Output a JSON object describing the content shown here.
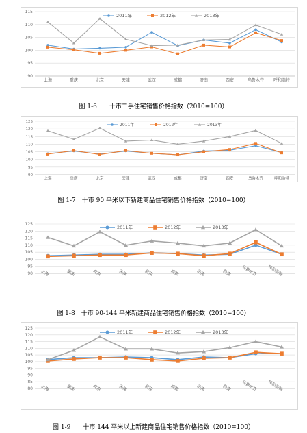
{
  "colors": {
    "s2011": "#5b9bd5",
    "s2012": "#ed7d31",
    "s2013": "#a5a5a5",
    "grid": "#d9d9d9",
    "axis": "#bfbfbf"
  },
  "captions": [
    "图 1-6　　十市二手住宅销售价格指数（2010=100）",
    "图 1-7　十市 90 平米以下新建商品住宅销售价格指数（2010=100）",
    "图 1-8　十市 90-144 平米新建商品住宅销售价格指数（2010=100）",
    "图 1-9　　十市 144 平米以上新建商品住宅销售价格指数（2010=100）"
  ],
  "chart_data": [
    {
      "type": "line",
      "title": "",
      "categories": [
        "上海",
        "重庆",
        "北京",
        "天津",
        "武汉",
        "成都",
        "济南",
        "西安",
        "乌鲁木齐",
        "呼和浩特"
      ],
      "ylim": [
        90,
        115
      ],
      "yticks": [
        90,
        95,
        100,
        105,
        110,
        115
      ],
      "grid": true,
      "legend": "top",
      "series": [
        {
          "name": "2011年",
          "values": [
            102.0,
            100.5,
            100.8,
            101.2,
            107.0,
            101.8,
            104.0,
            102.8,
            108.0,
            103.2
          ]
        },
        {
          "name": "2012年",
          "values": [
            101.2,
            100.2,
            98.8,
            100.0,
            101.3,
            98.6,
            102.0,
            101.3,
            106.8,
            103.8
          ]
        },
        {
          "name": "2013年",
          "values": [
            111.0,
            102.8,
            112.3,
            104.3,
            101.8,
            102.0,
            104.0,
            104.2,
            109.8,
            106.2
          ]
        }
      ]
    },
    {
      "type": "line",
      "title": "",
      "categories": [
        "上海",
        "重庆",
        "北京",
        "天津",
        "武汉",
        "成都",
        "济南",
        "西安",
        "乌鲁木齐",
        "呼和浩特"
      ],
      "ylim": [
        90,
        125
      ],
      "yticks": [
        90,
        95,
        100,
        105,
        110,
        115,
        120,
        125
      ],
      "grid": true,
      "legend": "top",
      "series": [
        {
          "name": "2011年",
          "values": [
            103.8,
            105.5,
            103.5,
            105.5,
            104.0,
            103.0,
            105.5,
            106.0,
            109.0,
            104.5
          ]
        },
        {
          "name": "2012年",
          "values": [
            103.5,
            105.8,
            103.2,
            105.8,
            104.0,
            103.0,
            105.0,
            106.5,
            110.5,
            104.3
          ]
        },
        {
          "name": "2013年",
          "values": [
            118.8,
            113.2,
            120.5,
            112.0,
            112.7,
            110.0,
            112.0,
            115.0,
            119.0,
            110.5
          ]
        }
      ]
    },
    {
      "type": "line",
      "title": "",
      "categories": [
        "上海",
        "重庆",
        "北京",
        "天津",
        "武汉",
        "成都",
        "济南",
        "西安",
        "乌鲁木齐",
        "呼和浩特"
      ],
      "ylim": [
        90,
        125
      ],
      "yticks": [
        90,
        95,
        100,
        105,
        110,
        115,
        120,
        125
      ],
      "grid": true,
      "legend": "top",
      "series": [
        {
          "name": "2011年",
          "values": [
            102.5,
            103.0,
            103.5,
            103.5,
            104.5,
            104.0,
            103.0,
            103.5,
            110.0,
            103.5
          ]
        },
        {
          "name": "2012年",
          "values": [
            102.0,
            102.5,
            103.0,
            103.0,
            104.5,
            104.0,
            102.5,
            104.0,
            112.0,
            103.5
          ]
        },
        {
          "name": "2013年",
          "values": [
            115.5,
            109.5,
            119.5,
            110.0,
            113.0,
            111.5,
            109.5,
            111.5,
            121.0,
            109.5
          ]
        }
      ]
    },
    {
      "type": "line",
      "title": "",
      "categories": [
        "上海",
        "重庆",
        "北京",
        "天津",
        "武汉",
        "成都",
        "济南",
        "西安",
        "乌鲁木齐",
        "呼和浩特"
      ],
      "ylim": [
        80,
        125
      ],
      "yticks": [
        80,
        85,
        90,
        95,
        100,
        105,
        110,
        115,
        120,
        125
      ],
      "grid": true,
      "legend": "top",
      "series": [
        {
          "name": "2011年",
          "values": [
            101.5,
            103.0,
            103.0,
            103.5,
            103.0,
            101.5,
            103.5,
            103.0,
            106.0,
            106.0
          ]
        },
        {
          "name": "2012年",
          "values": [
            100.5,
            102.0,
            103.0,
            103.0,
            101.5,
            100.5,
            102.5,
            103.0,
            107.0,
            106.0
          ]
        },
        {
          "name": "2013年",
          "values": [
            101.5,
            108.5,
            118.5,
            109.5,
            109.5,
            106.5,
            107.5,
            110.5,
            115.0,
            111.0
          ]
        }
      ]
    }
  ]
}
